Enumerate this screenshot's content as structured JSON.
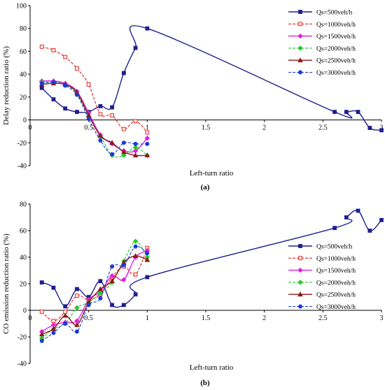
{
  "chart_data": [
    {
      "type": "line",
      "panel_label": "(a)",
      "xlabel": "Left-turn ratio",
      "ylabel": "Delay reduction ratio (%)",
      "xlim": [
        0,
        3
      ],
      "ylim": [
        -40,
        100
      ],
      "xticks": [
        0,
        0.5,
        1,
        1.5,
        2,
        2.5,
        3
      ],
      "xtick_labels": [
        "0",
        "0.5",
        "1",
        "1.5",
        "2",
        "2.5",
        "3"
      ],
      "yticks": [
        -40,
        -20,
        0,
        20,
        40,
        60,
        80,
        100
      ],
      "ytick_labels": [
        "-40",
        "-20",
        "0",
        "20",
        "40",
        "60",
        "80",
        "100"
      ],
      "grid": false,
      "legend_position": "top-right",
      "series": [
        {
          "name": "Qs=500veh/h",
          "color": "#1f1f8f",
          "dash": "solid",
          "marker": "square",
          "filled": true,
          "x": [
            0.1,
            0.2,
            0.3,
            0.4,
            0.5,
            0.6,
            0.7,
            0.8,
            0.9,
            1.0,
            2.6,
            2.7,
            2.8,
            2.9,
            3.0
          ],
          "y": [
            28,
            18,
            10,
            7,
            7,
            12,
            11,
            41,
            63,
            80,
            7,
            7,
            7,
            -7,
            -9
          ]
        },
        {
          "name": "Qs=1000veh/h",
          "color": "#e8201e",
          "dash": "dashed",
          "marker": "square",
          "filled": false,
          "x": [
            0.1,
            0.2,
            0.3,
            0.4,
            0.5,
            0.6,
            0.7,
            0.8,
            0.9,
            1.0
          ],
          "y": [
            64,
            61,
            55,
            45,
            31,
            5,
            4,
            -8,
            -1,
            -11
          ]
        },
        {
          "name": "Qs=1500veh/h",
          "color": "#e020e0",
          "dash": "solid",
          "marker": "diamond",
          "filled": true,
          "x": [
            0.1,
            0.2,
            0.3,
            0.4,
            0.5,
            0.6,
            0.7,
            0.8,
            0.9,
            1.0
          ],
          "y": [
            34,
            34,
            32,
            25,
            6,
            -13,
            -21,
            -27,
            -27,
            -16
          ]
        },
        {
          "name": "Qs=2000veh/h",
          "color": "#22c922",
          "dash": "dashed",
          "marker": "diamond",
          "filled": true,
          "x": [
            0.1,
            0.2,
            0.3,
            0.4,
            0.5,
            0.6,
            0.7,
            0.8,
            0.9,
            1.0
          ],
          "y": [
            33,
            33,
            31,
            23,
            3,
            -14,
            -31,
            -31,
            -24,
            -31
          ]
        },
        {
          "name": "Qs=2500veh/h",
          "color": "#8b1a1a",
          "dash": "solid",
          "marker": "triangle",
          "filled": true,
          "x": [
            0.1,
            0.2,
            0.3,
            0.4,
            0.5,
            0.6,
            0.7,
            0.8,
            0.9,
            1.0
          ],
          "y": [
            31,
            32,
            31,
            24,
            4,
            -14,
            -20,
            -28,
            -31,
            -31
          ]
        },
        {
          "name": "Qs=3000veh/h",
          "color": "#1a3ad8",
          "dash": "dashed",
          "marker": "circle",
          "filled": true,
          "x": [
            0.1,
            0.2,
            0.3,
            0.4,
            0.5,
            0.6,
            0.7,
            0.8,
            0.9,
            1.0
          ],
          "y": [
            32,
            33,
            30,
            22,
            1,
            -18,
            -30,
            -20,
            -21,
            -21
          ]
        }
      ]
    },
    {
      "type": "line",
      "panel_label": "(b)",
      "xlabel": "Left-turn ratio",
      "ylabel": "CO emission reduction ratio (%)",
      "xlim": [
        0,
        3
      ],
      "ylim": [
        -40,
        80
      ],
      "xticks": [
        0,
        0.5,
        1,
        1.5,
        2,
        2.5,
        3
      ],
      "xtick_labels": [
        "0",
        "0.5",
        "1",
        "1.5",
        "2",
        "2.5",
        "3"
      ],
      "yticks": [
        -40,
        -20,
        0,
        20,
        40,
        60,
        80
      ],
      "ytick_labels": [
        "-40",
        "-20",
        "0",
        "20",
        "40",
        "60",
        "80"
      ],
      "grid": false,
      "legend_position": "right",
      "series": [
        {
          "name": "Qs=500veh/h",
          "color": "#1f1f8f",
          "dash": "solid",
          "marker": "square",
          "filled": true,
          "x": [
            0.1,
            0.2,
            0.3,
            0.4,
            0.5,
            0.6,
            0.7,
            0.8,
            0.9,
            1.0,
            2.6,
            2.7,
            2.8,
            2.9,
            3.0
          ],
          "y": [
            21,
            17,
            3,
            16,
            10,
            22,
            4,
            4,
            12,
            25,
            62,
            70,
            75,
            60,
            68
          ]
        },
        {
          "name": "Qs=1000veh/h",
          "color": "#e8201e",
          "dash": "dashed",
          "marker": "square",
          "filled": false,
          "x": [
            0.1,
            0.2,
            0.3,
            0.4,
            0.5,
            0.6,
            0.7,
            0.8,
            0.9,
            1.0
          ],
          "y": [
            -1,
            -8,
            -1,
            11,
            8,
            12,
            25,
            33,
            27,
            47
          ]
        },
        {
          "name": "Qs=1500veh/h",
          "color": "#e020e0",
          "dash": "solid",
          "marker": "diamond",
          "filled": true,
          "x": [
            0.1,
            0.2,
            0.3,
            0.4,
            0.5,
            0.6,
            0.7,
            0.8,
            0.9,
            1.0
          ],
          "y": [
            -16,
            -11,
            -9,
            -8,
            8,
            14,
            26,
            23,
            40,
            45
          ]
        },
        {
          "name": "Qs=2000veh/h",
          "color": "#22c922",
          "dash": "dashed",
          "marker": "diamond",
          "filled": true,
          "x": [
            0.1,
            0.2,
            0.3,
            0.4,
            0.5,
            0.6,
            0.7,
            0.8,
            0.9,
            1.0
          ],
          "y": [
            -21,
            -14,
            -10,
            2,
            6,
            13,
            21,
            37,
            52,
            40
          ]
        },
        {
          "name": "Qs=2500veh/h",
          "color": "#8b1a1a",
          "dash": "solid",
          "marker": "triangle",
          "filled": true,
          "x": [
            0.1,
            0.2,
            0.3,
            0.4,
            0.5,
            0.6,
            0.7,
            0.8,
            0.9,
            1.0
          ],
          "y": [
            -18,
            -14,
            -4,
            -11,
            6,
            16,
            22,
            36,
            41,
            38
          ]
        },
        {
          "name": "Qs=3000veh/h",
          "color": "#1a3ad8",
          "dash": "dashed",
          "marker": "circle",
          "filled": true,
          "x": [
            0.1,
            0.2,
            0.3,
            0.4,
            0.5,
            0.6,
            0.7,
            0.8,
            0.9,
            1.0
          ],
          "y": [
            -23,
            -17,
            -10,
            -16,
            4,
            9,
            33,
            34,
            48,
            43
          ]
        }
      ]
    }
  ]
}
